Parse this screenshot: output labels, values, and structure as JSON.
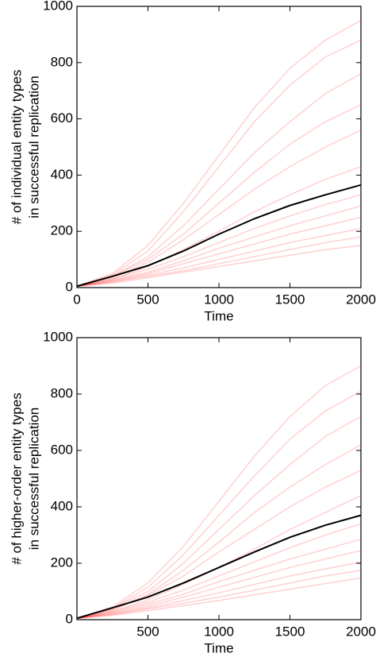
{
  "chart_data": [
    {
      "type": "line",
      "ylabel": [
        "# of individual entity types",
        "in successful replication"
      ],
      "xlabel": "Time",
      "x": [
        0,
        250,
        500,
        750,
        1000,
        1250,
        1500,
        1750,
        2000
      ],
      "xlim": [
        0,
        2000
      ],
      "ylim": [
        0,
        1000
      ],
      "xticks": [
        0,
        500,
        1000,
        1500,
        2000
      ],
      "yticks": [
        0,
        200,
        400,
        600,
        800,
        1000
      ],
      "series": [
        {
          "color": "#ff0000",
          "values": [
            5,
            50,
            150,
            300,
            470,
            640,
            780,
            880,
            950
          ]
        },
        {
          "color": "#ff0000",
          "values": [
            5,
            45,
            130,
            270,
            430,
            590,
            720,
            820,
            880
          ]
        },
        {
          "color": "#ff0000",
          "values": [
            5,
            40,
            110,
            220,
            350,
            480,
            590,
            690,
            760
          ]
        },
        {
          "color": "#ff0000",
          "values": [
            5,
            40,
            100,
            190,
            300,
            410,
            510,
            590,
            650
          ]
        },
        {
          "color": "#ff0000",
          "values": [
            5,
            35,
            90,
            170,
            260,
            350,
            430,
            500,
            560
          ]
        },
        {
          "color": "#ff0000",
          "values": [
            5,
            30,
            75,
            135,
            200,
            270,
            330,
            385,
            430
          ]
        },
        {
          "color": "#ff0000",
          "values": [
            5,
            30,
            65,
            110,
            160,
            210,
            255,
            295,
            330
          ]
        },
        {
          "color": "#ff0000",
          "values": [
            5,
            25,
            55,
            95,
            140,
            180,
            220,
            255,
            290
          ]
        },
        {
          "color": "#ff0000",
          "values": [
            5,
            25,
            50,
            85,
            120,
            155,
            190,
            220,
            250
          ]
        },
        {
          "color": "#ff0000",
          "values": [
            5,
            20,
            45,
            70,
            100,
            130,
            160,
            185,
            210
          ]
        },
        {
          "color": "#ff0000",
          "values": [
            5,
            20,
            40,
            60,
            85,
            110,
            135,
            160,
            180
          ]
        },
        {
          "color": "#ff0000",
          "values": [
            5,
            15,
            35,
            55,
            75,
            95,
            115,
            135,
            150
          ]
        },
        {
          "color": "#000000",
          "values": [
            5,
            40,
            78,
            130,
            190,
            245,
            292,
            330,
            365
          ]
        }
      ]
    },
    {
      "type": "line",
      "ylabel": [
        "# of higher-order entity types",
        "in successful replication"
      ],
      "xlabel": "Time",
      "x": [
        0,
        250,
        500,
        750,
        1000,
        1250,
        1500,
        1750,
        2000
      ],
      "xlim": [
        0,
        2000
      ],
      "ylim": [
        0,
        1000
      ],
      "xticks": [
        500,
        1000,
        1500,
        2000
      ],
      "yticks": [
        0,
        200,
        400,
        600,
        800,
        1000
      ],
      "series": [
        {
          "color": "#ff0000",
          "values": [
            5,
            45,
            130,
            260,
            420,
            580,
            720,
            830,
            900
          ]
        },
        {
          "color": "#ff0000",
          "values": [
            5,
            40,
            115,
            230,
            370,
            510,
            640,
            740,
            810
          ]
        },
        {
          "color": "#ff0000",
          "values": [
            5,
            40,
            100,
            200,
            320,
            440,
            550,
            650,
            720
          ]
        },
        {
          "color": "#ff0000",
          "values": [
            5,
            35,
            90,
            175,
            275,
            380,
            470,
            550,
            620
          ]
        },
        {
          "color": "#ff0000",
          "values": [
            5,
            35,
            85,
            155,
            240,
            320,
            400,
            470,
            530
          ]
        },
        {
          "color": "#ff0000",
          "values": [
            5,
            30,
            70,
            125,
            185,
            250,
            320,
            380,
            440
          ]
        },
        {
          "color": "#ff0000",
          "values": [
            5,
            28,
            62,
            105,
            155,
            205,
            255,
            300,
            340
          ]
        },
        {
          "color": "#ff0000",
          "values": [
            5,
            25,
            55,
            90,
            135,
            175,
            215,
            250,
            285
          ]
        },
        {
          "color": "#ff0000",
          "values": [
            5,
            22,
            48,
            80,
            115,
            150,
            185,
            215,
            245
          ]
        },
        {
          "color": "#ff0000",
          "values": [
            5,
            20,
            42,
            68,
            95,
            125,
            155,
            180,
            205
          ]
        },
        {
          "color": "#ff0000",
          "values": [
            5,
            18,
            38,
            58,
            80,
            105,
            130,
            155,
            175
          ]
        },
        {
          "color": "#ff0000",
          "values": [
            5,
            15,
            32,
            50,
            68,
            88,
            108,
            128,
            148
          ]
        },
        {
          "color": "#000000",
          "values": [
            5,
            42,
            80,
            130,
            185,
            240,
            292,
            335,
            370
          ]
        }
      ]
    }
  ]
}
